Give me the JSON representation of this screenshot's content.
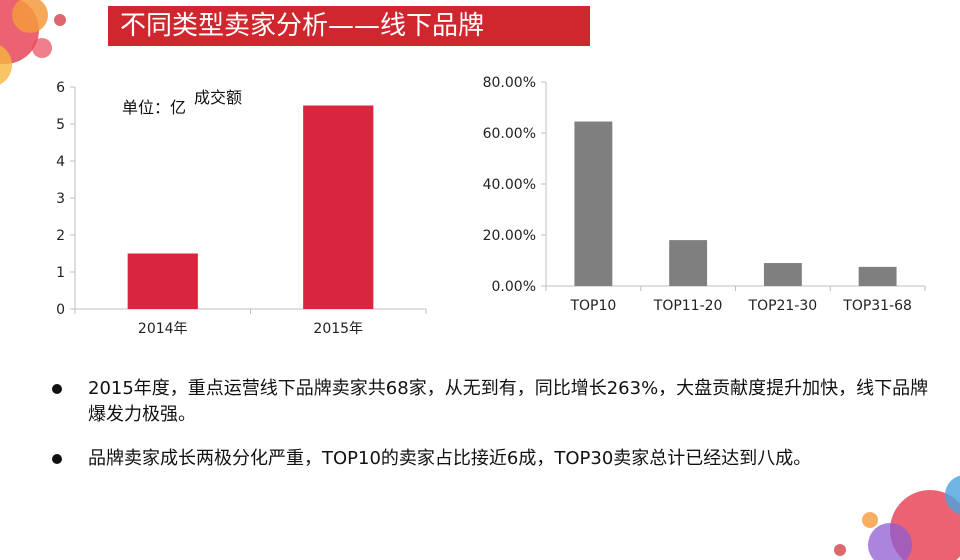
{
  "title": "不同类型卖家分析——线下品牌",
  "unit_label": "单位：亿",
  "bullets": [
    "2015年度，重点运营线下品牌卖家共68家，从无到有，同比增长263%，大盘贡献度提升加快，线下品牌爆发力极强。",
    "品牌卖家成长两极分化严重，TOP10的卖家占比接近6成，TOP30卖家总计已经达到八成。"
  ],
  "colors": {
    "accent": "#d0272f",
    "bar_left": "#d7263d",
    "bar_right": "#7f7f7f",
    "axis": "#bfbfbf"
  },
  "chart_data": [
    {
      "type": "bar",
      "categories": [
        "2014年",
        "2015年"
      ],
      "series": [
        {
          "name": "成交额",
          "values": [
            1.5,
            5.5
          ]
        }
      ],
      "yticks": [
        "0",
        "1",
        "2",
        "3",
        "4",
        "5",
        "6"
      ],
      "ylim": [
        0,
        6
      ],
      "grid": false
    },
    {
      "type": "bar",
      "categories": [
        "TOP10",
        "TOP11-20",
        "TOP21-30",
        "TOP31-68"
      ],
      "values": [
        0.645,
        0.18,
        0.09,
        0.075
      ],
      "yticks": [
        "0.00%",
        "20.00%",
        "40.00%",
        "60.00%",
        "80.00%"
      ],
      "ylim": [
        0,
        0.8
      ],
      "grid": false
    }
  ]
}
